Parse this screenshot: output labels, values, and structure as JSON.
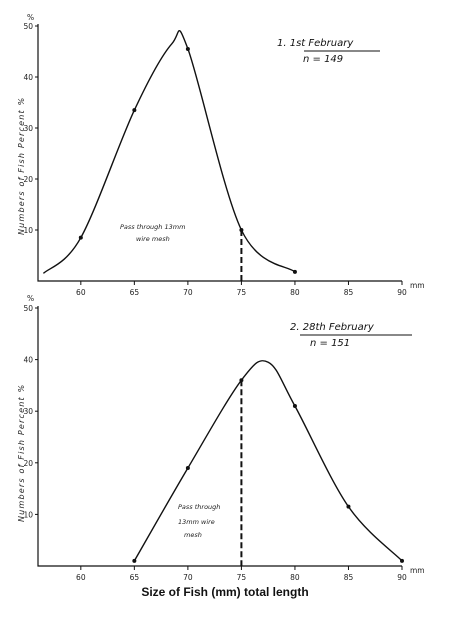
{
  "x_caption": "Size of Fish (mm) total length",
  "colors": {
    "ink": "#111111",
    "paper": "#ffffff"
  },
  "chart_data": [
    {
      "type": "line",
      "title": "1.  1st February",
      "subtitle": "n = 149",
      "ylabel": "Numbers of Fish Percent %",
      "y_unit": "%",
      "x_unit": "mm",
      "xlim": [
        56,
        90
      ],
      "ylim": [
        0,
        50
      ],
      "x_ticks": [
        60,
        65,
        70,
        75,
        80,
        85,
        90
      ],
      "y_ticks": [
        10,
        20,
        30,
        40,
        50
      ],
      "annotation": [
        "Pass through 13mm",
        "wire mesh"
      ],
      "cutoff_x": 75,
      "grid": false,
      "points": [
        {
          "x": 60,
          "y": 8.5
        },
        {
          "x": 65,
          "y": 33.5
        },
        {
          "x": 70,
          "y": 45.5
        },
        {
          "x": 75,
          "y": 10
        },
        {
          "x": 80,
          "y": 1.8
        }
      ],
      "curve": [
        [
          56.5,
          1.5
        ],
        [
          60,
          8.5
        ],
        [
          65,
          33.5
        ],
        [
          68.5,
          46.5
        ],
        [
          70,
          45.5
        ],
        [
          75,
          10
        ],
        [
          80,
          1.8
        ]
      ]
    },
    {
      "type": "line",
      "title": "2.  28th February",
      "subtitle": "n = 151",
      "ylabel": "Numbers of Fish Percent %",
      "y_unit": "%",
      "x_unit": "mm",
      "xlim": [
        56,
        90
      ],
      "ylim": [
        0,
        50
      ],
      "x_ticks": [
        60,
        65,
        70,
        75,
        80,
        85,
        90
      ],
      "y_ticks": [
        10,
        20,
        30,
        40,
        50
      ],
      "annotation": [
        "Pass through",
        "13mm wire",
        "mesh"
      ],
      "cutoff_x": 75,
      "grid": false,
      "points": [
        {
          "x": 65,
          "y": 1
        },
        {
          "x": 70,
          "y": 19
        },
        {
          "x": 75,
          "y": 36
        },
        {
          "x": 80,
          "y": 31
        },
        {
          "x": 85,
          "y": 11.5
        },
        {
          "x": 90,
          "y": 1
        }
      ],
      "curve": [
        [
          65,
          1
        ],
        [
          70,
          19
        ],
        [
          75,
          36
        ],
        [
          77.5,
          39.5
        ],
        [
          80,
          31
        ],
        [
          85,
          11.5
        ],
        [
          90,
          1
        ]
      ]
    }
  ]
}
